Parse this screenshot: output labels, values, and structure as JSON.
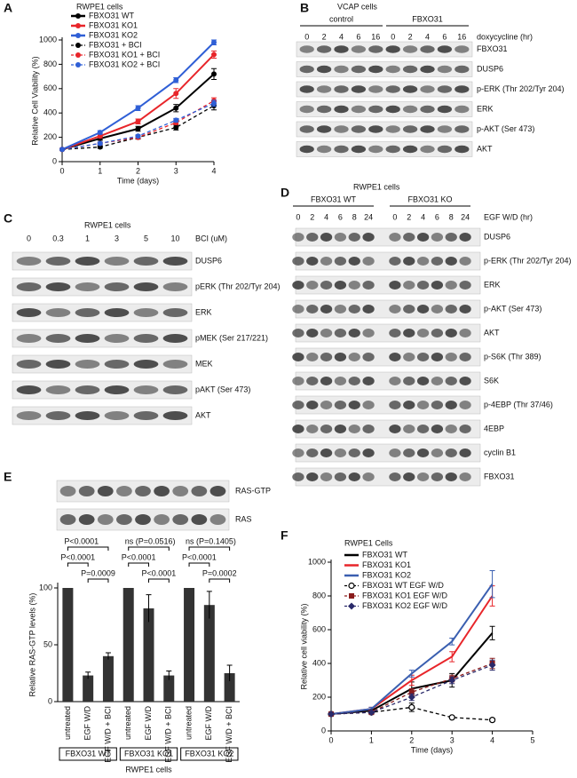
{
  "chart_data": [
    {
      "type": "line",
      "panel": "A",
      "title": "RWPE1 cells",
      "x_label": "Time (days)",
      "y_label": "Relative Cell Viability (%)",
      "x": [
        0,
        1,
        2,
        3,
        4
      ],
      "xlim": [
        0,
        4
      ],
      "xticks": [
        0,
        1,
        2,
        3,
        4
      ],
      "ylim": [
        0,
        1000
      ],
      "yticks": [
        0,
        200,
        400,
        600,
        800,
        1000
      ],
      "series": [
        {
          "name": "FBXO31 WT",
          "color": "#000000",
          "marker": "circle",
          "dashed": false,
          "values": [
            100,
            190,
            270,
            440,
            720
          ],
          "errors": [
            0,
            15,
            20,
            30,
            45
          ]
        },
        {
          "name": "FBXO31 KO1",
          "color": "#e8252a",
          "marker": "circle",
          "dashed": false,
          "values": [
            100,
            210,
            330,
            560,
            880
          ],
          "errors": [
            0,
            15,
            20,
            40,
            30
          ]
        },
        {
          "name": "FBXO31 KO2",
          "color": "#2f5fd6",
          "marker": "circle",
          "dashed": false,
          "values": [
            100,
            240,
            440,
            670,
            980
          ],
          "errors": [
            0,
            15,
            20,
            20,
            20
          ]
        },
        {
          "name": "FBXO31 + BCI",
          "color": "#000000",
          "marker": "circle",
          "dashed": true,
          "values": [
            100,
            120,
            200,
            280,
            460
          ],
          "errors": [
            0,
            10,
            15,
            20,
            35
          ]
        },
        {
          "name": "FBXO31 KO1 + BCI",
          "color": "#e8252a",
          "marker": "circle",
          "dashed": true,
          "values": [
            100,
            150,
            200,
            320,
            500
          ],
          "errors": [
            0,
            10,
            10,
            15,
            25
          ]
        },
        {
          "name": "FBXO31 KO2 + BCI",
          "color": "#2f5fd6",
          "marker": "circle",
          "dashed": true,
          "values": [
            100,
            150,
            210,
            340,
            480
          ],
          "errors": [
            0,
            10,
            10,
            15,
            25
          ]
        }
      ]
    },
    {
      "type": "bar",
      "panel": "E",
      "y_label": "Relative RAS-GTP levels (%)",
      "x_label": "RWPE1 cells",
      "color": "#333333",
      "categories": [
        "untreated",
        "EGF W/D",
        "EGF W/D + BCI",
        "untreated",
        "EGF W/D",
        "EGF W/D + BCI",
        "untreated",
        "EGF W/D",
        "EGF W/D + BCI"
      ],
      "groups": [
        "FBXO31 WT",
        "FBXO31 KO1",
        "FBXO31 KO2"
      ],
      "values": [
        100,
        23,
        40,
        100,
        82,
        23,
        100,
        85,
        25
      ],
      "errors": [
        0,
        3,
        3,
        0,
        12,
        4,
        0,
        12,
        7
      ],
      "ylim": [
        0,
        100
      ],
      "yticks": [
        0,
        50,
        100
      ],
      "annotations": [
        "P<0.0001",
        "P<0.0001",
        "P=0.0009",
        "ns (P=0.0516)",
        "P<0.0001",
        "P<0.0001",
        "ns (P=0.1405)",
        "P<0.0001",
        "P=0.0002"
      ]
    },
    {
      "type": "line",
      "panel": "F",
      "title": "RWPE1 Cells",
      "x_label": "Time (days)",
      "y_label": "Relative cell viability (%)",
      "x": [
        0,
        1,
        2,
        3,
        4
      ],
      "xlim": [
        0,
        5
      ],
      "xticks": [
        0,
        1,
        2,
        3,
        4,
        5
      ],
      "ylim": [
        0,
        1000
      ],
      "yticks": [
        0,
        200,
        400,
        600,
        800,
        1000
      ],
      "series": [
        {
          "name": "FBXO31 WT",
          "color": "#000000",
          "dashed": false,
          "values": [
            100,
            120,
            250,
            300,
            580
          ],
          "errors": [
            0,
            10,
            40,
            40,
            40
          ]
        },
        {
          "name": "FBXO31 KO1",
          "color": "#e8252a",
          "dashed": false,
          "values": [
            100,
            130,
            300,
            440,
            800
          ],
          "errors": [
            0,
            10,
            30,
            30,
            60
          ]
        },
        {
          "name": "FBXO31 KO2",
          "color": "#3a5fb0",
          "dashed": false,
          "values": [
            100,
            130,
            340,
            530,
            870
          ],
          "errors": [
            0,
            10,
            20,
            20,
            80
          ]
        },
        {
          "name": "FBXO31 WT EGF W/D",
          "color": "#000000",
          "marker": "open-circle",
          "dashed": true,
          "values": [
            100,
            110,
            140,
            80,
            65
          ],
          "errors": [
            0,
            5,
            25,
            5,
            10
          ]
        },
        {
          "name": "FBXO31 KO1 EGF W/D",
          "color": "#8a1c1c",
          "marker": "square",
          "dashed": true,
          "values": [
            100,
            110,
            230,
            310,
            400
          ],
          "errors": [
            0,
            5,
            20,
            20,
            30
          ]
        },
        {
          "name": "FBXO31 KO2 EGF W/D",
          "color": "#2a2a6a",
          "marker": "diamond",
          "dashed": true,
          "values": [
            100,
            110,
            200,
            300,
            390
          ],
          "errors": [
            0,
            5,
            20,
            20,
            30
          ]
        }
      ]
    }
  ],
  "blots": {
    "B": {
      "panel": "B",
      "title": "VCAP cells",
      "groups": [
        "control",
        "FBXO31"
      ],
      "lanes": [
        0,
        2,
        4,
        6,
        16,
        0,
        2,
        4,
        6,
        16
      ],
      "lane_label": "doxycycline (hr)",
      "rows": [
        "FBXO31",
        "DUSP6",
        "p-ERK (Thr 202/Tyr 204)",
        "ERK",
        "p-AKT (Ser 473)",
        "AKT"
      ]
    },
    "C": {
      "panel": "C",
      "title": "RWPE1 cells",
      "lanes": [
        0,
        0.3,
        1,
        3,
        5,
        10
      ],
      "lane_label": "BCI (uM)",
      "rows": [
        "DUSP6",
        "pERK (Thr 202/Tyr 204)",
        "ERK",
        "pMEK (Ser 217/221)",
        "MEK",
        "pAKT (Ser 473)",
        "AKT"
      ]
    },
    "D": {
      "panel": "D",
      "title": "RWPE1 cells",
      "groups": [
        "FBXO31 WT",
        "FBXO31 KO"
      ],
      "lanes": [
        0,
        2,
        4,
        6,
        8,
        24,
        0,
        2,
        4,
        6,
        8,
        24
      ],
      "lane_label": "EGF W/D (hr)",
      "rows": [
        "DUSP6",
        "p-ERK (Thr 202/Tyr 204)",
        "ERK",
        "p-AKT (Ser 473)",
        "AKT",
        "p-S6K (Thr 389)",
        "S6K",
        "p-4EBP (Thr 37/46)",
        "4EBP",
        "cyclin B1",
        "FBXO31"
      ]
    },
    "E": {
      "rows": [
        "RAS-GTP",
        "RAS"
      ]
    }
  }
}
